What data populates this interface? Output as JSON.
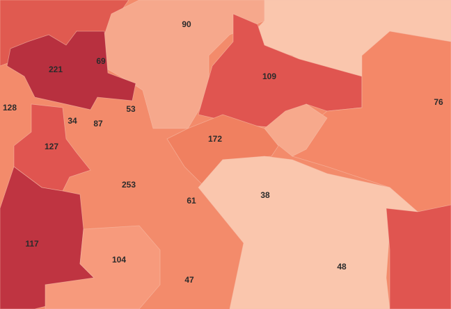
{
  "regions": [
    {
      "label": "90"
    },
    {
      "label": "221"
    },
    {
      "label": "69"
    },
    {
      "label": "109"
    },
    {
      "label": "128"
    },
    {
      "label": "53"
    },
    {
      "label": "76"
    },
    {
      "label": "34"
    },
    {
      "label": "87"
    },
    {
      "label": "127"
    },
    {
      "label": "172"
    },
    {
      "label": "253"
    },
    {
      "label": "38"
    },
    {
      "label": "61"
    },
    {
      "label": "117"
    },
    {
      "label": "104"
    },
    {
      "label": "48"
    },
    {
      "label": "47"
    }
  ]
}
